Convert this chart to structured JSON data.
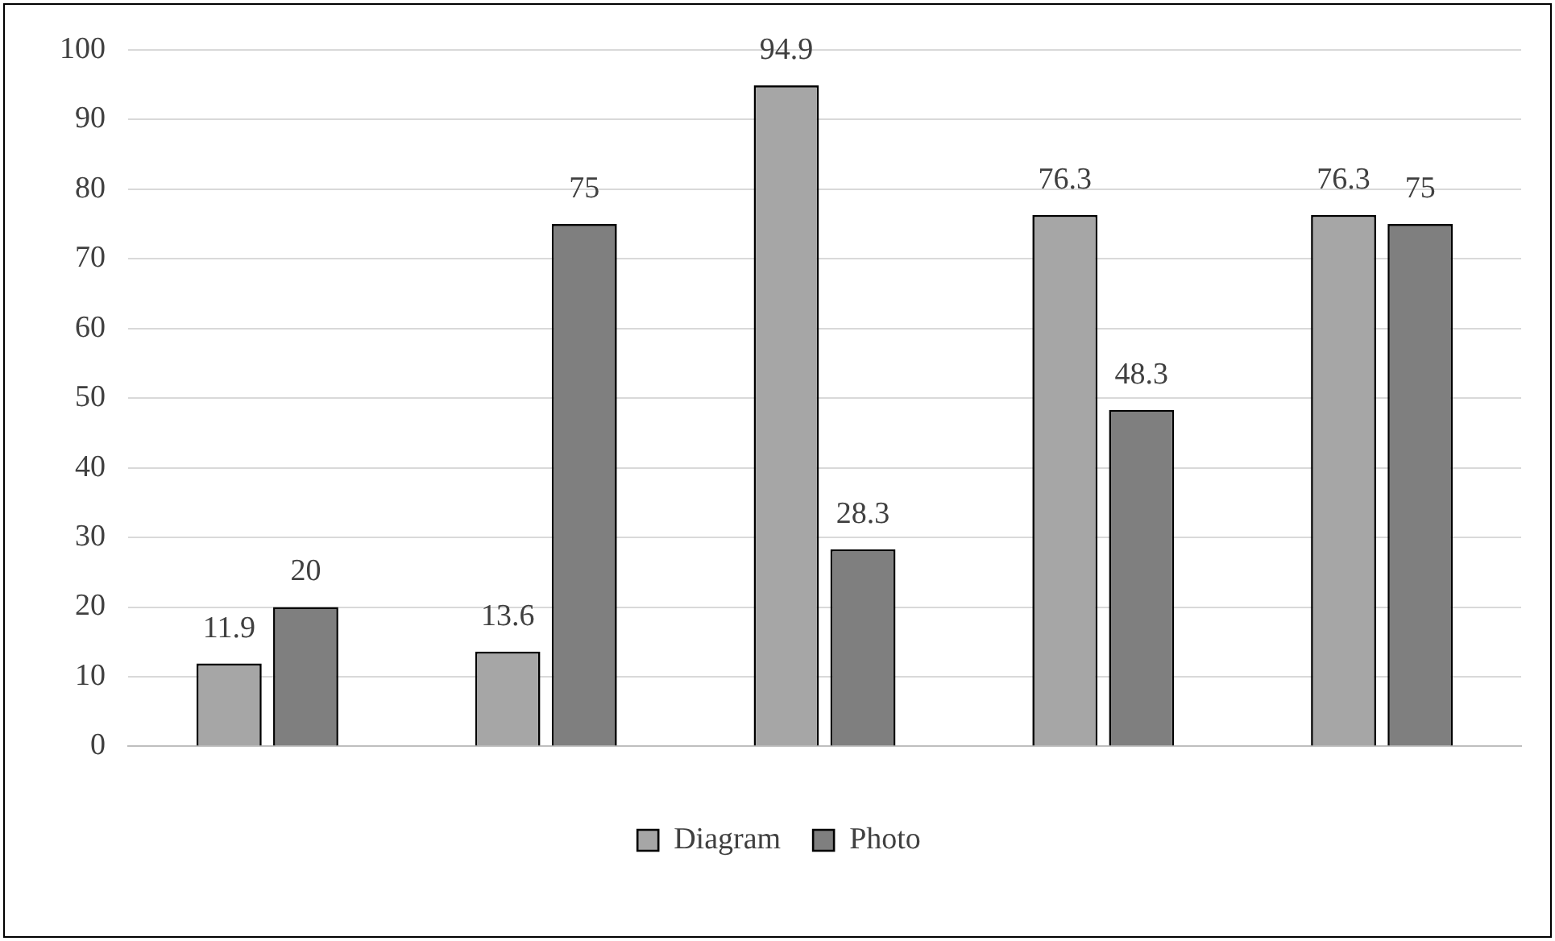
{
  "chart_data": {
    "type": "bar",
    "categories": [
      null,
      null,
      null,
      null,
      null
    ],
    "series": [
      {
        "name": "Diagram",
        "color": "#a6a6a6",
        "values": [
          11.9,
          13.6,
          94.9,
          76.3,
          76.3
        ]
      },
      {
        "name": "Photo",
        "color": "#7f7f7f",
        "values": [
          20,
          75,
          28.3,
          48.3,
          75
        ]
      }
    ],
    "ylim": [
      0,
      100
    ],
    "yticks": [
      0,
      10,
      20,
      30,
      40,
      50,
      60,
      70,
      80,
      90,
      100
    ],
    "grid": "y",
    "legend": "bottom",
    "data_labels": true
  }
}
